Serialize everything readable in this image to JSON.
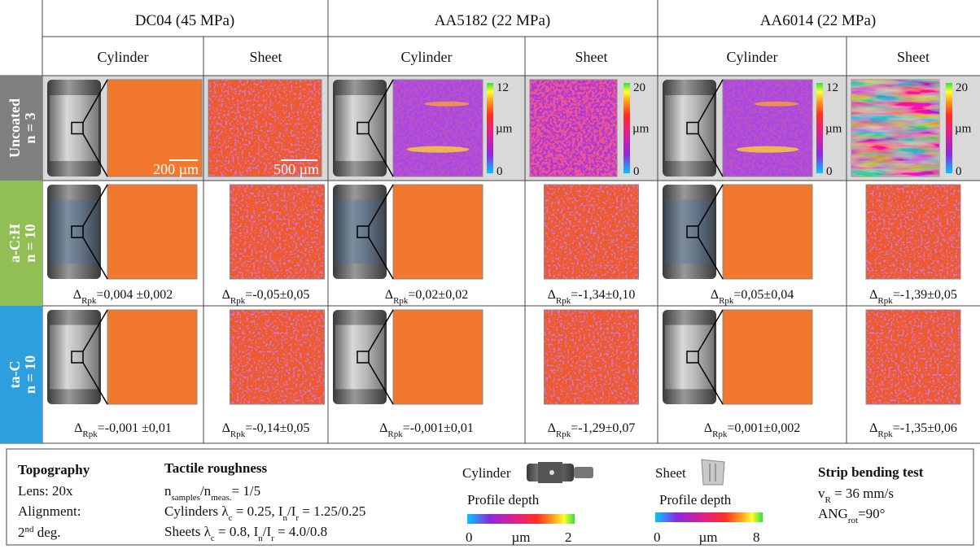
{
  "header": {
    "materials": [
      "DC04 (45 MPa)",
      "AA5182 (22 MPa)",
      "AA6014 (22 MPa)"
    ],
    "subheaders": [
      "Cylinder",
      "Sheet",
      "Cylinder",
      "Sheet",
      "Cylinder",
      "Sheet"
    ]
  },
  "rows": [
    {
      "label": "Uncoated",
      "n": "n = 3"
    },
    {
      "label": "a-C:H",
      "n": "n = 10",
      "deltas": [
        {
          "symbol": "Δ",
          "sub": "Rpk",
          "value": "=0,004 ±0,002"
        },
        {
          "symbol": "Δ",
          "sub": "Rpk",
          "value": "=-0,05±0,05"
        },
        {
          "symbol": "Δ",
          "sub": "Rpk",
          "value": "=0,02±0,02"
        },
        {
          "symbol": "Δ",
          "sub": "Rpk",
          "value": "=-1,34±0,10"
        },
        {
          "symbol": "Δ",
          "sub": "Rpk",
          "value": "=0,05±0,04"
        },
        {
          "symbol": "Δ",
          "sub": "Rpk",
          "value": "=-1,39±0,05"
        }
      ]
    },
    {
      "label": "ta-C",
      "n": "n = 10",
      "deltas": [
        {
          "symbol": "Δ",
          "sub": "Rpk",
          "value": "=-0,001 ±0,01"
        },
        {
          "symbol": "Δ",
          "sub": "Rpk",
          "value": "=-0,14±0,05"
        },
        {
          "symbol": "Δ",
          "sub": "Rpk",
          "value": "=-0,001±0,01"
        },
        {
          "symbol": "Δ",
          "sub": "Rpk",
          "value": "=-1,29±0,07"
        },
        {
          "symbol": "Δ",
          "sub": "Rpk",
          "value": "=0,001±0,002"
        },
        {
          "symbol": "Δ",
          "sub": "Rpk",
          "value": "=-1,35±0,06"
        }
      ]
    }
  ],
  "scale_bars": [
    "200 µm",
    "500 µm"
  ],
  "colorbars": [
    {
      "max": "12",
      "unit": "µm",
      "min": "0"
    },
    {
      "max": "20",
      "unit": "µm",
      "min": "0"
    },
    {
      "max": "12",
      "unit": "µm",
      "min": "0"
    },
    {
      "max": "20",
      "unit": "µm",
      "min": "0"
    }
  ],
  "legend": {
    "topography": {
      "title": "Topography",
      "lens": "Lens: 20x",
      "alignment": "Alignment:",
      "degree": [
        "2",
        "nd",
        " deg."
      ]
    },
    "tactile": {
      "title": "Tactile roughness",
      "line1": [
        "n",
        "samples",
        "/n",
        "meas.",
        "= 1/5"
      ],
      "line2": [
        "Cylinders λ",
        "c",
        " = 0.25, I",
        "n",
        "/I",
        "r",
        " = 1.25/0.25"
      ],
      "line3": [
        "Sheets λ",
        "c",
        " = 0.8, I",
        "n",
        "/I",
        "r",
        " = 4.0/0.8"
      ]
    },
    "cylinder": {
      "label": "Cylinder",
      "depth": "Profile depth",
      "min": "0",
      "unit": "µm",
      "max": "2"
    },
    "sheet": {
      "label": "Sheet",
      "depth": "Profile depth",
      "min": "0",
      "unit": "µm",
      "max": "8"
    },
    "strip": {
      "title": "Strip bending test",
      "line1": [
        "v",
        "R",
        " = 36 mm/s"
      ],
      "line2": [
        "ANG",
        "rot",
        "=90°"
      ]
    }
  }
}
